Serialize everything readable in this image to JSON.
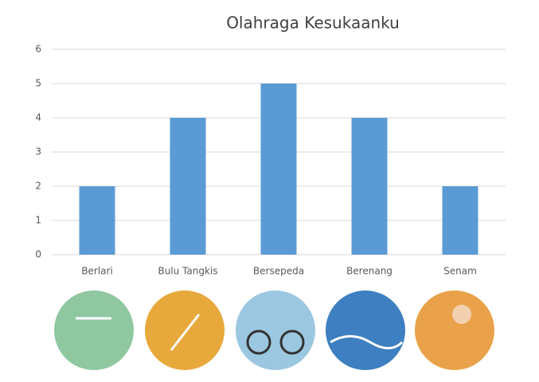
{
  "chart_data": {
    "type": "bar",
    "title": "Olahraga Kesukaanku",
    "categories": [
      "Berlari",
      "Bulu Tangkis",
      "Bersepeda",
      "Berenang",
      "Senam"
    ],
    "values": [
      2,
      4,
      5,
      4,
      2
    ],
    "color": "#5b9bd5",
    "ylim": [
      0,
      6
    ],
    "yticks": [
      0,
      1,
      2,
      3,
      4,
      5,
      6
    ],
    "grid": true
  }
}
